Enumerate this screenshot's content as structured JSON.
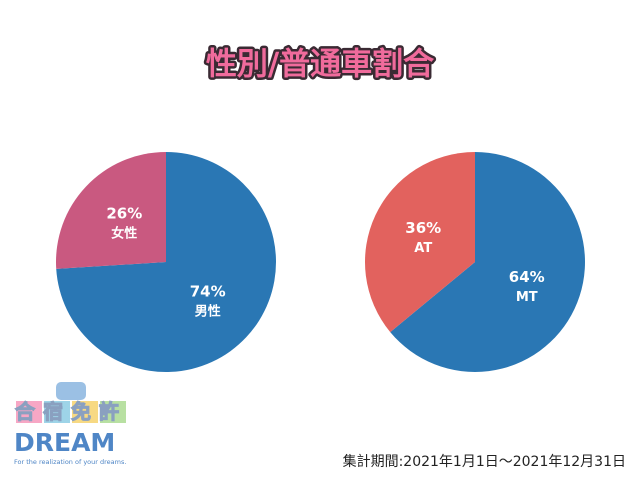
{
  "title": "性別/普通車割合",
  "chart_data": [
    {
      "type": "pie",
      "categories": [
        "男性",
        "女性"
      ],
      "values": [
        74,
        26
      ],
      "value_labels": [
        "74%",
        "26%"
      ],
      "colors": [
        "#2a77b4",
        "#c95980"
      ]
    },
    {
      "type": "pie",
      "categories": [
        "MT",
        "AT"
      ],
      "values": [
        64,
        36
      ],
      "value_labels": [
        "64%",
        "36%"
      ],
      "colors": [
        "#2a77b4",
        "#e2625e"
      ]
    }
  ],
  "footer": "集計期間:2021年1月1日〜2021年12月31日",
  "logo": {
    "name": "合宿免許",
    "brand": "DREAM",
    "tagline": "For the realization of your dreams."
  }
}
